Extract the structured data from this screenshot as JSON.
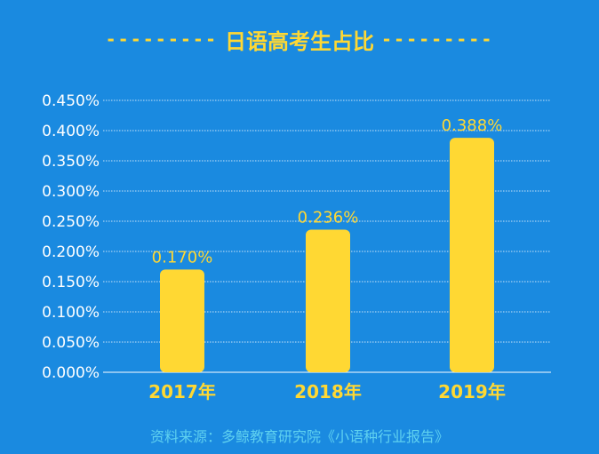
{
  "title": "日语高考生占比",
  "title_decoration": "---------",
  "source": "资料来源：多鲸教育研究院《小语种行业报告》",
  "colors": {
    "background": "#1a8ae0",
    "bar": "#ffd833",
    "label": "#ffd833",
    "axis_text": "#ffffff",
    "source_text": "#5fd1f0"
  },
  "chart_data": {
    "type": "bar",
    "title": "日语高考生占比",
    "categories": [
      "2017年",
      "2018年",
      "2019年"
    ],
    "values": [
      0.17,
      0.236,
      0.388
    ],
    "value_labels": [
      "0.170%",
      "0.236%",
      "0.388%"
    ],
    "yticks": [
      "0.000%",
      "0.050%",
      "0.100%",
      "0.150%",
      "0.200%",
      "0.250%",
      "0.300%",
      "0.350%",
      "0.400%",
      "0.450%"
    ],
    "ylim": [
      0,
      0.45
    ],
    "ytick_step": 0.05,
    "grid": true,
    "xlabel": "",
    "ylabel": ""
  }
}
